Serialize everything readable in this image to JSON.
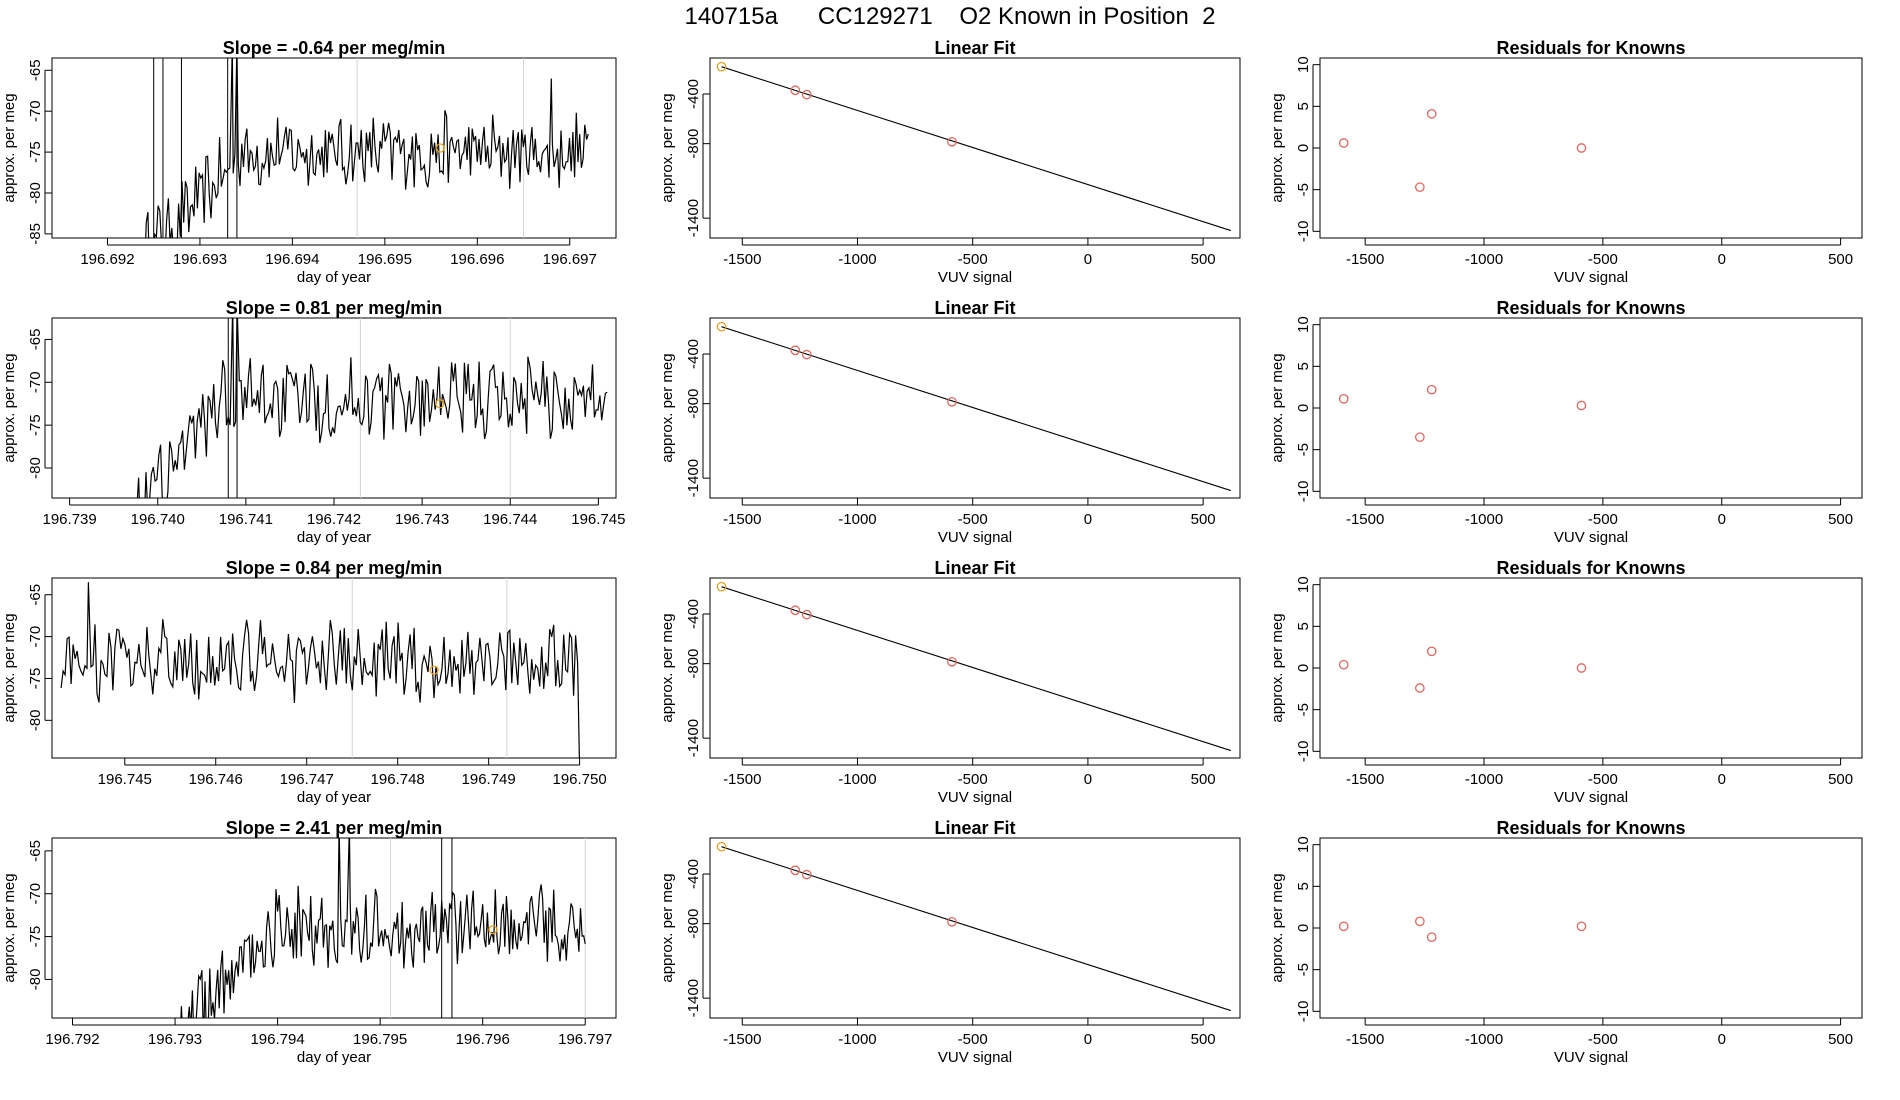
{
  "page": {
    "title": "140715a      CC129271    O2 Known in Position  2"
  },
  "colors": {
    "line": "#000000",
    "grid": "#d3d3d3",
    "knowns": "#e0675f",
    "highlight": "#e8a020"
  },
  "chart_data": [
    {
      "type": "line",
      "name": "timeseries-1",
      "title": "Slope =  -0.64  per meg/min",
      "xlabel": "day of year",
      "ylabel": "approx. per meg",
      "xlim": [
        196.6914,
        196.6975
      ],
      "ylim": [
        -85.5,
        -63.5
      ],
      "xticks": [
        196.692,
        196.693,
        196.694,
        196.695,
        196.696,
        196.697
      ],
      "xtick_labels": [
        "196.692",
        "196.693",
        "196.694",
        "196.695",
        "196.696",
        "196.697"
      ],
      "yticks": [
        -85,
        -80,
        -75,
        -70,
        -65
      ],
      "ytick_labels": [
        "-85",
        "-80",
        "-75",
        "-70",
        "-65"
      ],
      "vlines_dark": [
        196.6925,
        196.6926,
        196.6928,
        196.6933,
        196.6934
      ],
      "vlines_gray": [
        196.6947,
        196.6965
      ],
      "t0": 196.6924,
      "t1": 196.6972,
      "base": -75,
      "amp": 4,
      "ramp_end": 196.6935,
      "highlight": {
        "x": 196.6956,
        "y": -74.5
      },
      "spikes": [
        [
          196.69335,
          -62
        ],
        [
          196.6934,
          -62
        ],
        [
          196.6968,
          -66
        ]
      ]
    },
    {
      "type": "line",
      "name": "timeseries-2",
      "title": "Slope =  0.81  per meg/min",
      "xlabel": "day of year",
      "ylabel": "approx. per meg",
      "xlim": [
        196.7388,
        196.7452
      ],
      "ylim": [
        -83.5,
        -62.5
      ],
      "xticks": [
        196.739,
        196.74,
        196.741,
        196.742,
        196.743,
        196.744,
        196.745
      ],
      "xtick_labels": [
        "196.739",
        "196.740",
        "196.741",
        "196.742",
        "196.743",
        "196.744",
        "196.745"
      ],
      "yticks": [
        -80,
        -75,
        -70,
        -65
      ],
      "ytick_labels": [
        "-80",
        "-75",
        "-70",
        "-65"
      ],
      "vlines_dark": [
        196.7408,
        196.7409
      ],
      "vlines_gray": [
        196.7423,
        196.744
      ],
      "t0": 196.7397,
      "t1": 196.7451,
      "base": -72,
      "amp": 4,
      "ramp_end": 196.7407,
      "highlight": {
        "x": 196.7432,
        "y": -72.5
      },
      "spikes": [
        [
          196.74085,
          -61
        ],
        [
          196.7409,
          -61
        ],
        [
          196.7442,
          -67
        ]
      ]
    },
    {
      "type": "line",
      "name": "timeseries-3",
      "title": "Slope =  0.84  per meg/min",
      "xlabel": "day of year",
      "ylabel": "approx. per meg",
      "xlim": [
        196.7442,
        196.7504
      ],
      "ylim": [
        -84.5,
        -63
      ],
      "xticks": [
        196.745,
        196.746,
        196.747,
        196.748,
        196.749,
        196.75
      ],
      "xtick_labels": [
        "196.745",
        "196.746",
        "196.747",
        "196.748",
        "196.749",
        "196.750"
      ],
      "yticks": [
        -80,
        -75,
        -70,
        -65
      ],
      "ytick_labels": [
        "-80",
        "-75",
        "-70",
        "-65"
      ],
      "vlines_dark": [],
      "vlines_gray": [
        196.7475,
        196.7492
      ],
      "t0": 196.7443,
      "t1": 196.75,
      "base": -73,
      "amp": 4,
      "ramp_end": 196.7443,
      "highlight": {
        "x": 196.7484,
        "y": -74
      },
      "spikes": [
        [
          196.7446,
          -63.5
        ],
        [
          196.75,
          -86
        ]
      ]
    },
    {
      "type": "line",
      "name": "timeseries-4",
      "title": "Slope =  2.41  per meg/min",
      "xlabel": "day of year",
      "ylabel": "approx. per meg",
      "xlim": [
        196.7918,
        196.7973
      ],
      "ylim": [
        -84.5,
        -63.5
      ],
      "xticks": [
        196.792,
        196.793,
        196.794,
        196.795,
        196.796,
        196.797
      ],
      "xtick_labels": [
        "196.792",
        "196.793",
        "196.794",
        "196.795",
        "196.796",
        "196.797"
      ],
      "yticks": [
        -80,
        -75,
        -70,
        -65
      ],
      "ytick_labels": [
        "-80",
        "-75",
        "-70",
        "-65"
      ],
      "vlines_dark": [
        196.7956,
        196.7957
      ],
      "vlines_gray": [
        196.7951,
        196.797
      ],
      "t0": 196.793,
      "t1": 196.797,
      "base": -74,
      "amp": 4,
      "ramp_end": 196.794,
      "highlight": {
        "x": 196.7961,
        "y": -74.2
      },
      "spikes": [
        [
          196.7946,
          -62
        ],
        [
          196.7947,
          -62
        ]
      ]
    },
    {
      "type": "scatter",
      "name": "linear-fit-1",
      "title": "Linear Fit",
      "xlabel": "VUV signal",
      "ylabel": "approx. per meg",
      "xlim": [
        -1640,
        660
      ],
      "ylim": [
        -1560,
        -110
      ],
      "xticks": [
        -1500,
        -1000,
        -500,
        0,
        500
      ],
      "xtick_labels": [
        "-1500",
        "-1000",
        "-500",
        "0",
        "500"
      ],
      "yticks": [
        -400,
        -800,
        -1400
      ],
      "ytick_labels": [
        "-400",
        "-800",
        "-1400"
      ],
      "line": [
        [
          -1590,
          -180
        ],
        [
          620,
          -1500
        ]
      ],
      "points": [
        [
          -1590,
          -180
        ],
        [
          -1270,
          -370
        ],
        [
          -1220,
          -405
        ],
        [
          -590,
          -785
        ]
      ],
      "highlight_index": 0
    },
    {
      "type": "scatter",
      "name": "linear-fit-2",
      "title": "Linear Fit",
      "xlabel": "VUV signal",
      "ylabel": "approx. per meg",
      "xlim": [
        -1640,
        660
      ],
      "ylim": [
        -1560,
        -110
      ],
      "xticks": [
        -1500,
        -1000,
        -500,
        0,
        500
      ],
      "xtick_labels": [
        "-1500",
        "-1000",
        "-500",
        "0",
        "500"
      ],
      "yticks": [
        -400,
        -800,
        -1400
      ],
      "ytick_labels": [
        "-400",
        "-800",
        "-1400"
      ],
      "line": [
        [
          -1590,
          -180
        ],
        [
          620,
          -1500
        ]
      ],
      "points": [
        [
          -1590,
          -180
        ],
        [
          -1270,
          -370
        ],
        [
          -1220,
          -405
        ],
        [
          -590,
          -785
        ]
      ],
      "highlight_index": 0
    },
    {
      "type": "scatter",
      "name": "linear-fit-3",
      "title": "Linear Fit",
      "xlabel": "VUV signal",
      "ylabel": "approx. per meg",
      "xlim": [
        -1640,
        660
      ],
      "ylim": [
        -1560,
        -110
      ],
      "xticks": [
        -1500,
        -1000,
        -500,
        0,
        500
      ],
      "xtick_labels": [
        "-1500",
        "-1000",
        "-500",
        "0",
        "500"
      ],
      "yticks": [
        -400,
        -800,
        -1400
      ],
      "ytick_labels": [
        "-400",
        "-800",
        "-1400"
      ],
      "line": [
        [
          -1590,
          -180
        ],
        [
          620,
          -1500
        ]
      ],
      "points": [
        [
          -1590,
          -180
        ],
        [
          -1270,
          -370
        ],
        [
          -1220,
          -405
        ],
        [
          -590,
          -785
        ]
      ],
      "highlight_index": 0
    },
    {
      "type": "scatter",
      "name": "linear-fit-4",
      "title": "Linear Fit",
      "xlabel": "VUV signal",
      "ylabel": "approx. per meg",
      "xlim": [
        -1640,
        660
      ],
      "ylim": [
        -1560,
        -110
      ],
      "xticks": [
        -1500,
        -1000,
        -500,
        0,
        500
      ],
      "xtick_labels": [
        "-1500",
        "-1000",
        "-500",
        "0",
        "500"
      ],
      "yticks": [
        -400,
        -800,
        -1400
      ],
      "ytick_labels": [
        "-400",
        "-800",
        "-1400"
      ],
      "line": [
        [
          -1590,
          -180
        ],
        [
          620,
          -1500
        ]
      ],
      "points": [
        [
          -1590,
          -180
        ],
        [
          -1270,
          -370
        ],
        [
          -1220,
          -405
        ],
        [
          -590,
          -785
        ]
      ],
      "highlight_index": 0
    },
    {
      "type": "scatter",
      "name": "residuals-1",
      "title": "Residuals for Knowns",
      "xlabel": "VUV signal",
      "ylabel": "approx. per meg",
      "xlim": [
        -1690,
        590
      ],
      "ylim": [
        -10.8,
        10.8
      ],
      "xticks": [
        -1500,
        -1000,
        -500,
        0,
        500
      ],
      "xtick_labels": [
        "-1500",
        "-1000",
        "-500",
        "0",
        "500"
      ],
      "yticks": [
        -10,
        -5,
        0,
        5,
        10
      ],
      "ytick_labels": [
        "-10",
        "-5",
        "0",
        "5",
        "10"
      ],
      "points": [
        [
          -1590,
          0.6
        ],
        [
          -1270,
          -4.7
        ],
        [
          -1220,
          4.1
        ],
        [
          -590,
          0.0
        ]
      ]
    },
    {
      "type": "scatter",
      "name": "residuals-2",
      "title": "Residuals for Knowns",
      "xlabel": "VUV signal",
      "ylabel": "approx. per meg",
      "xlim": [
        -1690,
        590
      ],
      "ylim": [
        -10.8,
        10.8
      ],
      "xticks": [
        -1500,
        -1000,
        -500,
        0,
        500
      ],
      "xtick_labels": [
        "-1500",
        "-1000",
        "-500",
        "0",
        "500"
      ],
      "yticks": [
        -10,
        -5,
        0,
        5,
        10
      ],
      "ytick_labels": [
        "-10",
        "-5",
        "0",
        "5",
        "10"
      ],
      "points": [
        [
          -1590,
          1.1
        ],
        [
          -1270,
          -3.5
        ],
        [
          -1220,
          2.2
        ],
        [
          -590,
          0.3
        ]
      ]
    },
    {
      "type": "scatter",
      "name": "residuals-3",
      "title": "Residuals for Knowns",
      "xlabel": "VUV signal",
      "ylabel": "approx. per meg",
      "xlim": [
        -1690,
        590
      ],
      "ylim": [
        -10.8,
        10.8
      ],
      "xticks": [
        -1500,
        -1000,
        -500,
        0,
        500
      ],
      "xtick_labels": [
        "-1500",
        "-1000",
        "-500",
        "0",
        "500"
      ],
      "yticks": [
        -10,
        -5,
        0,
        5,
        10
      ],
      "ytick_labels": [
        "-10",
        "-5",
        "0",
        "5",
        "10"
      ],
      "points": [
        [
          -1590,
          0.4
        ],
        [
          -1270,
          -2.4
        ],
        [
          -1220,
          2.0
        ],
        [
          -590,
          0.0
        ]
      ]
    },
    {
      "type": "scatter",
      "name": "residuals-4",
      "title": "Residuals for Knowns",
      "xlabel": "VUV signal",
      "ylabel": "approx. per meg",
      "xlim": [
        -1690,
        590
      ],
      "ylim": [
        -10.8,
        10.8
      ],
      "xticks": [
        -1500,
        -1000,
        -500,
        0,
        500
      ],
      "xtick_labels": [
        "-1500",
        "-1000",
        "-500",
        "0",
        "500"
      ],
      "yticks": [
        -10,
        -5,
        0,
        5,
        10
      ],
      "ytick_labels": [
        "-10",
        "-5",
        "0",
        "5",
        "10"
      ],
      "points": [
        [
          -1590,
          0.2
        ],
        [
          -1270,
          0.8
        ],
        [
          -1220,
          -1.1
        ],
        [
          -590,
          0.2
        ]
      ]
    }
  ]
}
